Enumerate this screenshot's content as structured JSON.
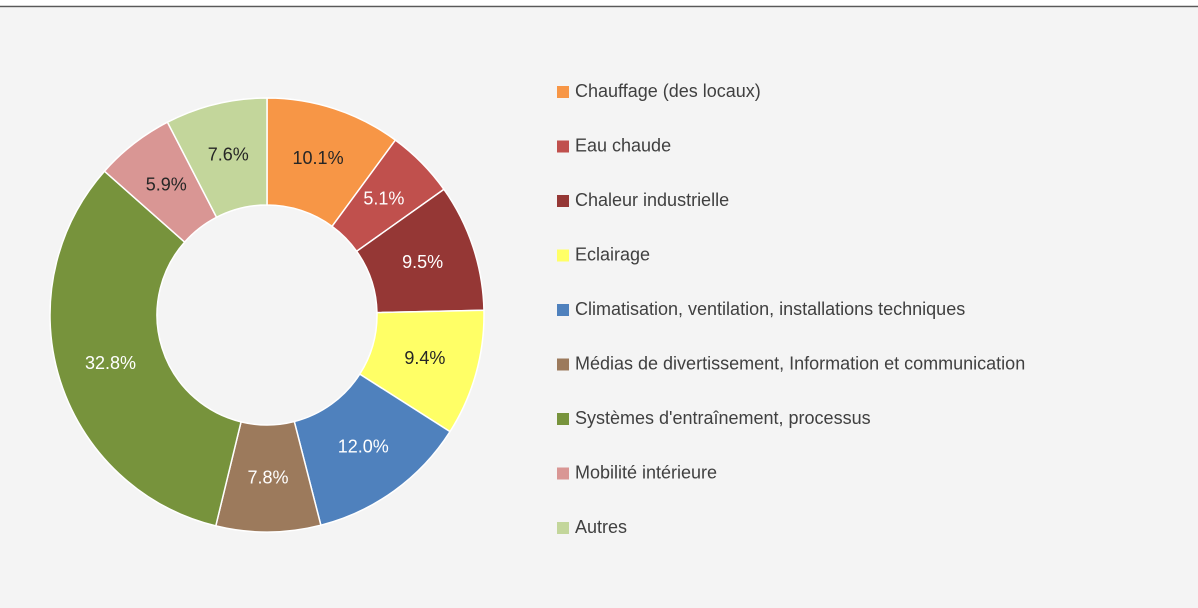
{
  "chart_data": {
    "type": "donut",
    "categories": [
      "Chauffage (des locaux)",
      "Eau chaude",
      "Chaleur industrielle",
      "Eclairage",
      "Climatisation, ventilation, installations techniques",
      "Médias de divertissement, Information et communication",
      "Systèmes d'entraînement, processus",
      "Mobilité intérieure",
      "Autres"
    ],
    "values": [
      10.1,
      5.1,
      9.5,
      9.4,
      12.0,
      7.8,
      32.8,
      5.9,
      7.6
    ],
    "value_labels": [
      "10.1%",
      "5.1%",
      "9.5%",
      "9.4%",
      "12.0%",
      "7.8%",
      "32.8%",
      "5.9%",
      "7.6%"
    ],
    "colors": [
      "#f79646",
      "#c0504d",
      "#953735",
      "#ffff66",
      "#4f81bd",
      "#9c7a5c",
      "#77933c",
      "#d99694",
      "#c3d69b"
    ],
    "legend": "right"
  }
}
